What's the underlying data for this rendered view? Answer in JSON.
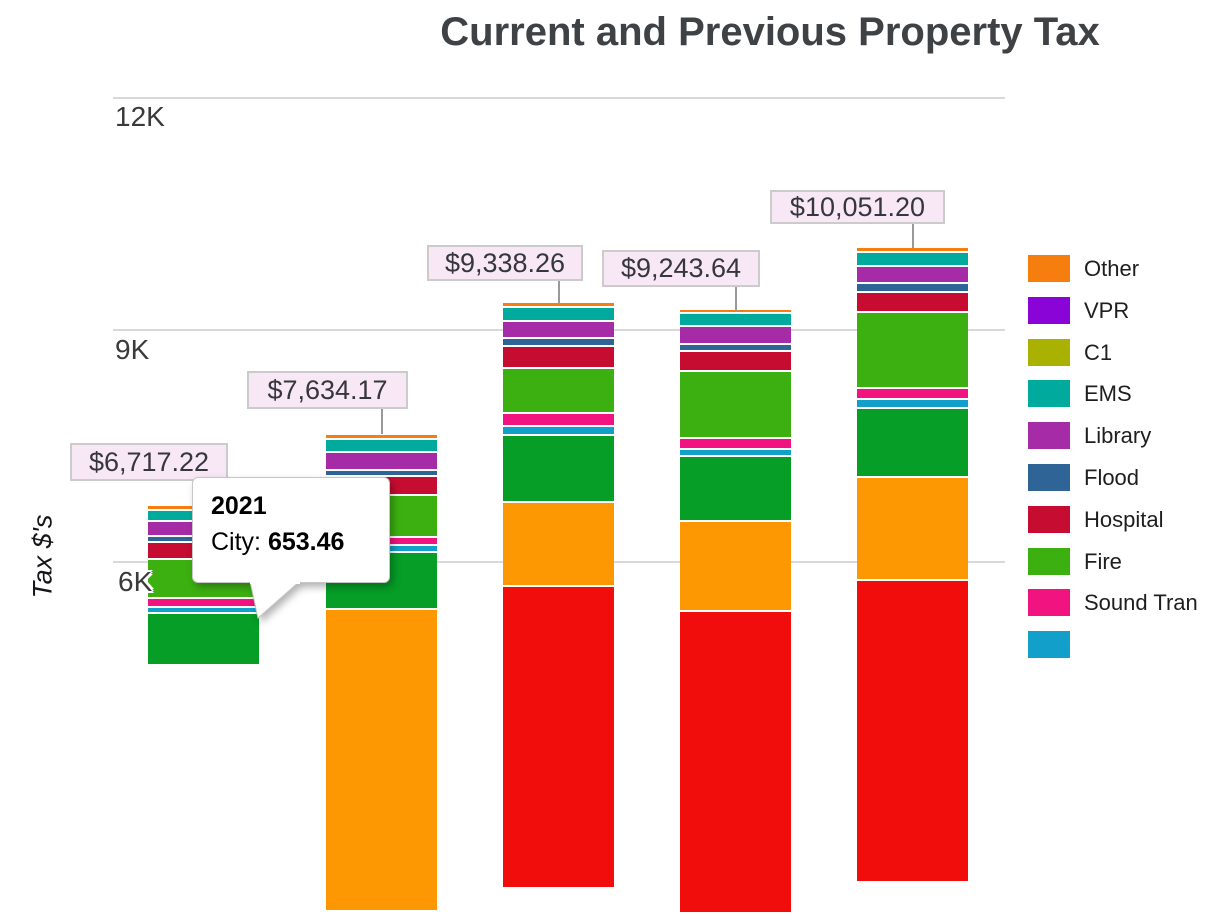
{
  "title": "Current and Previous Property Tax",
  "y_axis": {
    "label": "Tax $'s",
    "ticks": [
      "12K",
      "9K",
      "6K"
    ]
  },
  "tooltip": {
    "year": "2021",
    "series_label": "City:",
    "value": "653.46"
  },
  "legend": {
    "items": [
      {
        "label": "Other",
        "color": "#F57E0F"
      },
      {
        "label": "VPR",
        "color": "#8A04D8"
      },
      {
        "label": "C1",
        "color": "#A9B101"
      },
      {
        "label": "EMS",
        "color": "#00AB9E"
      },
      {
        "label": "Library",
        "color": "#A62BA6"
      },
      {
        "label": "Flood",
        "color": "#2F6497"
      },
      {
        "label": "Hospital",
        "color": "#C60C30"
      },
      {
        "label": "Fire",
        "color": "#3CB011"
      },
      {
        "label": "Sound Tran",
        "color": "#F1137F"
      }
    ],
    "partial_item_color": "#12A0CB"
  },
  "chart_data": {
    "type": "bar",
    "stacked": true,
    "title": "Current and Previous Property Tax",
    "ylabel": "Tax $'s",
    "grid": true,
    "legend_position": "right",
    "gridline_values": [
      12000,
      9000,
      6000
    ],
    "gridline_labels": [
      "12K",
      "9K",
      "6K"
    ],
    "y_visible_range_approx": [
      5000,
      13250
    ],
    "categories": [
      "2021",
      "",
      "",
      "",
      ""
    ],
    "totals": [
      6717.22,
      7634.17,
      9338.26,
      9243.64,
      10051.2
    ],
    "total_labels": [
      "$6,717.22",
      "$7,634.17",
      "$9,338.26",
      "$9,243.64",
      "$10,051.20"
    ],
    "bars": [
      {
        "category": "2021",
        "total": 6717.22,
        "total_label": "$6,717.22",
        "segments": [
          {
            "name": "Other",
            "color": "#F57E0F",
            "value": 39
          },
          {
            "name": "EMS",
            "color": "#00AB9E",
            "value": 116
          },
          {
            "name": "Library",
            "color": "#A62BA6",
            "value": 168
          },
          {
            "name": "Flood",
            "color": "#2F6497",
            "value": 52
          },
          {
            "name": "Hospital",
            "color": "#C60C30",
            "value": 194
          },
          {
            "name": "Fire",
            "color": "#3CB011",
            "value": 491
          },
          {
            "name": "Sound Tran",
            "color": "#F1137F",
            "value": 78
          },
          {
            "name": "",
            "color": "#12A0CB",
            "value": 52
          },
          {
            "name": "City",
            "color": "#069E26",
            "value": 653.46,
            "clipped": true
          }
        ]
      },
      {
        "category": "",
        "total": 7634.17,
        "total_label": "$7,634.17",
        "segments": [
          {
            "name": "Other",
            "color": "#F57E0F",
            "value": 39
          },
          {
            "name": "EMS",
            "color": "#00AB9E",
            "value": 142
          },
          {
            "name": "Library",
            "color": "#A62BA6",
            "value": 207
          },
          {
            "name": "Flood",
            "color": "#2F6497",
            "value": 52
          },
          {
            "name": "Hospital",
            "color": "#C60C30",
            "value": 220
          },
          {
            "name": "Fire",
            "color": "#3CB011",
            "value": 517
          },
          {
            "name": "Sound Tran",
            "color": "#F1137F",
            "value": 78
          },
          {
            "name": "",
            "color": "#12A0CB",
            "value": 65
          },
          {
            "name": "City",
            "color": "#069E26",
            "value": 711
          },
          {
            "name": "",
            "color": "#FD9702",
            "value": null,
            "clipped": true
          }
        ]
      },
      {
        "category": "",
        "total": 9338.26,
        "total_label": "$9,338.26",
        "segments": [
          {
            "name": "Other",
            "color": "#F57E0F",
            "value": 39
          },
          {
            "name": "EMS",
            "color": "#00AB9E",
            "value": 155
          },
          {
            "name": "Library",
            "color": "#A62BA6",
            "value": 194
          },
          {
            "name": "Flood",
            "color": "#2F6497",
            "value": 78
          },
          {
            "name": "Hospital",
            "color": "#C60C30",
            "value": 259
          },
          {
            "name": "Fire",
            "color": "#3CB011",
            "value": 556
          },
          {
            "name": "Sound Tran",
            "color": "#F1137F",
            "value": 142
          },
          {
            "name": "",
            "color": "#12A0CB",
            "value": 90
          },
          {
            "name": "City",
            "color": "#069E26",
            "value": 840
          },
          {
            "name": "",
            "color": "#FD9702",
            "value": 1060
          },
          {
            "name": "",
            "color": "#F20D0D",
            "value": null,
            "clipped": true
          }
        ]
      },
      {
        "category": "",
        "total": 9243.64,
        "total_label": "$9,243.64",
        "segments": [
          {
            "name": "Other",
            "color": "#F57E0F",
            "value": 26
          },
          {
            "name": "EMS",
            "color": "#00AB9E",
            "value": 142
          },
          {
            "name": "Library",
            "color": "#A62BA6",
            "value": 207
          },
          {
            "name": "Flood",
            "color": "#2F6497",
            "value": 65
          },
          {
            "name": "Hospital",
            "color": "#C60C30",
            "value": 233
          },
          {
            "name": "Fire",
            "color": "#3CB011",
            "value": 840
          },
          {
            "name": "Sound Tran",
            "color": "#F1137F",
            "value": 116
          },
          {
            "name": "",
            "color": "#12A0CB",
            "value": 65
          },
          {
            "name": "City",
            "color": "#069E26",
            "value": 815
          },
          {
            "name": "",
            "color": "#FD9702",
            "value": 1138
          },
          {
            "name": "",
            "color": "#F20D0D",
            "value": null,
            "clipped": true
          }
        ]
      },
      {
        "category": "",
        "total": 10051.2,
        "total_label": "$10,051.20",
        "segments": [
          {
            "name": "Other",
            "color": "#F57E0F",
            "value": 39
          },
          {
            "name": "EMS",
            "color": "#00AB9E",
            "value": 155
          },
          {
            "name": "Library",
            "color": "#A62BA6",
            "value": 194
          },
          {
            "name": "Flood",
            "color": "#2F6497",
            "value": 90
          },
          {
            "name": "Hospital",
            "color": "#C60C30",
            "value": 233
          },
          {
            "name": "Fire",
            "color": "#3CB011",
            "value": 957
          },
          {
            "name": "Sound Tran",
            "color": "#F1137F",
            "value": 116
          },
          {
            "name": "",
            "color": "#12A0CB",
            "value": 90
          },
          {
            "name": "City",
            "color": "#069E26",
            "value": 866
          },
          {
            "name": "",
            "color": "#FD9702",
            "value": 1306
          },
          {
            "name": "",
            "color": "#F20D0D",
            "value": null,
            "clipped": true
          }
        ]
      }
    ]
  }
}
